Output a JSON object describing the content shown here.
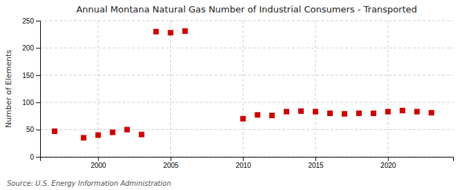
{
  "chart_data": {
    "type": "scatter",
    "title": "Annual Montana Natural Gas Number of Industrial Consumers - Transported",
    "ylabel": "Number of Elements",
    "annotations": [
      "Source: U.S. Energy Information Administration"
    ],
    "x": [
      1997,
      1999,
      2000,
      2001,
      2002,
      2003,
      2004,
      2005,
      2006,
      2010,
      2011,
      2012,
      2013,
      2014,
      2015,
      2016,
      2017,
      2018,
      2019,
      2020,
      2021,
      2022,
      2023
    ],
    "values": [
      47,
      35,
      40,
      45,
      50,
      41,
      230,
      228,
      231,
      70,
      77,
      76,
      83,
      84,
      83,
      80,
      79,
      80,
      80,
      83,
      85,
      83,
      81
    ],
    "color": "#cc0000",
    "marker": "square",
    "xlim": [
      1996,
      2024.5
    ],
    "ylim": [
      0,
      250
    ],
    "xticks": [
      2000,
      2005,
      2010,
      2015,
      2020
    ],
    "yticks": [
      0,
      50,
      100,
      150,
      200,
      250
    ],
    "grid": true
  }
}
